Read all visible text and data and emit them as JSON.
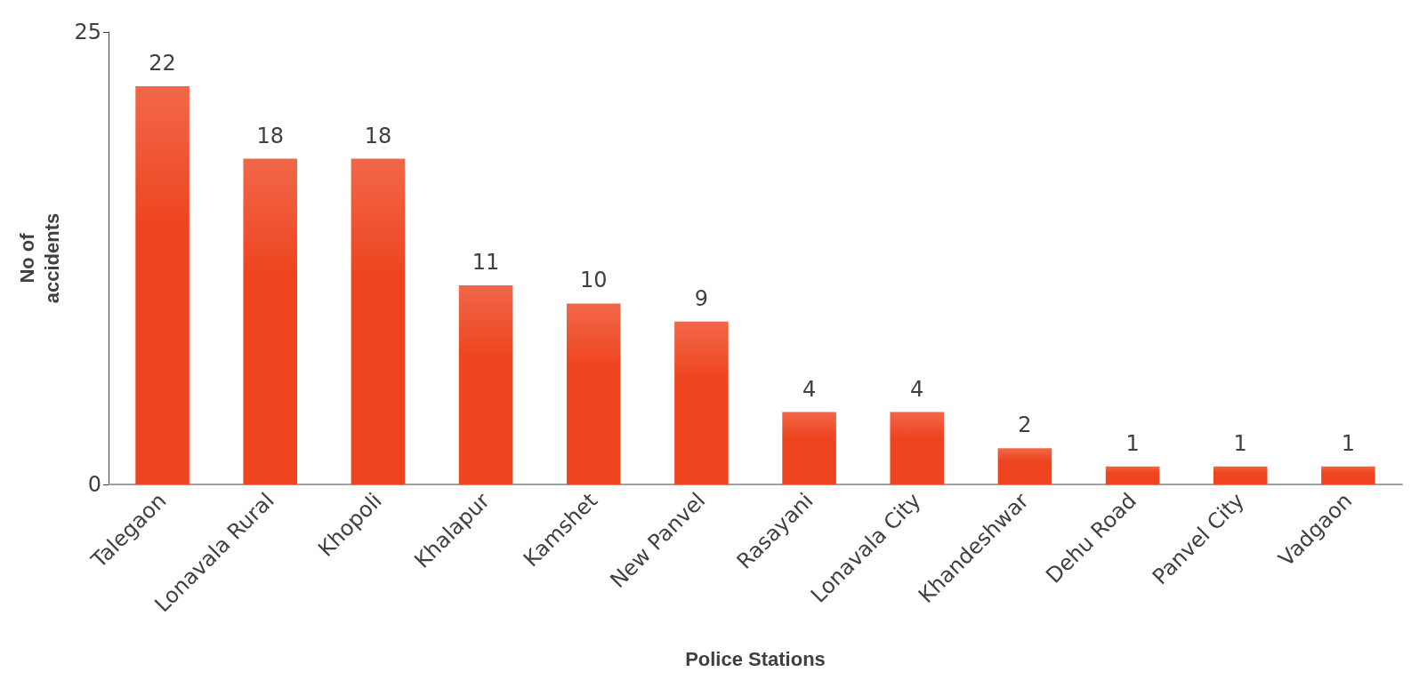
{
  "chart_data": {
    "type": "bar",
    "xlabel": "Police Stations",
    "ylabel": "No of\naccidents",
    "categories": [
      "Talegaon",
      "Lonavala Rural",
      "Khopoli",
      "Khalapur",
      "Kamshet",
      "New Panvel",
      "Rasayani",
      "Lonavala City",
      "Khandeshwar",
      "Dehu Road",
      "Panvel City",
      "Vadgaon"
    ],
    "values": [
      22,
      18,
      18,
      11,
      10,
      9,
      4,
      4,
      2,
      1,
      1,
      1
    ],
    "color": "#ee4520",
    "ylim": [
      0,
      25
    ],
    "yticks": [
      0,
      25
    ],
    "grid": false,
    "data_labels": true
  }
}
